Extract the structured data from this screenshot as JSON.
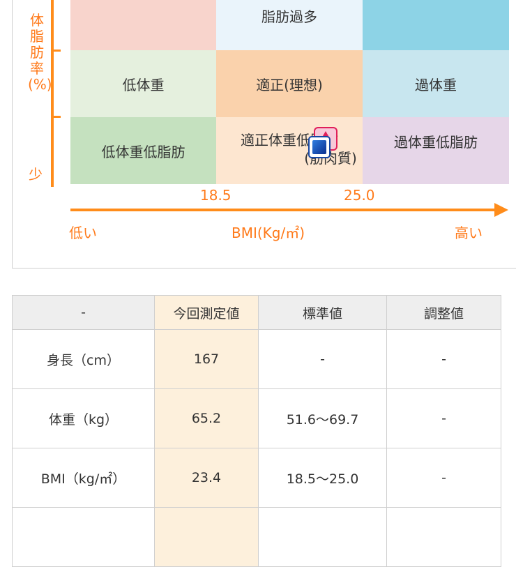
{
  "chart": {
    "y_axis_label": "体脂肪率(%)",
    "y_low_label": "少",
    "x_axis_label": "BMI(Kg/㎡)",
    "x_low_label": "低い",
    "x_high_label": "高い",
    "x_ticks": [
      "18.5",
      "25.0"
    ],
    "cells": [
      {
        "label": "",
        "color": "#f8d4cc"
      },
      {
        "label": "脂肪過多",
        "color": "#eaf4fb"
      },
      {
        "label": "",
        "color": "#8dd3e6"
      },
      {
        "label": "低体重",
        "color": "#e5f0de"
      },
      {
        "label": "適正(理想)",
        "color": "#fad2ac"
      },
      {
        "label": "過体重",
        "color": "#c8e6ef"
      },
      {
        "label": "低体重低脂肪",
        "color": "#c5e1bf"
      },
      {
        "label": "適正体重低脂肪",
        "color": "#fde6d0"
      },
      {
        "label": "過体重低脂肪",
        "color": "#e6d6e8"
      }
    ],
    "muscle_label": "(筋肉質)",
    "marker_icons": [
      "triangle-marker-icon",
      "square-marker-icon"
    ]
  },
  "table": {
    "headers": [
      "-",
      "今回測定値",
      "標準値",
      "調整値"
    ],
    "rows": [
      [
        "身長（cm）",
        "167",
        "-",
        "-"
      ],
      [
        "体重（kg）",
        "65.2",
        "51.6〜69.7",
        "-"
      ],
      [
        "BMI（kg/㎡）",
        "23.4",
        "18.5〜25.0",
        "-"
      ]
    ]
  }
}
